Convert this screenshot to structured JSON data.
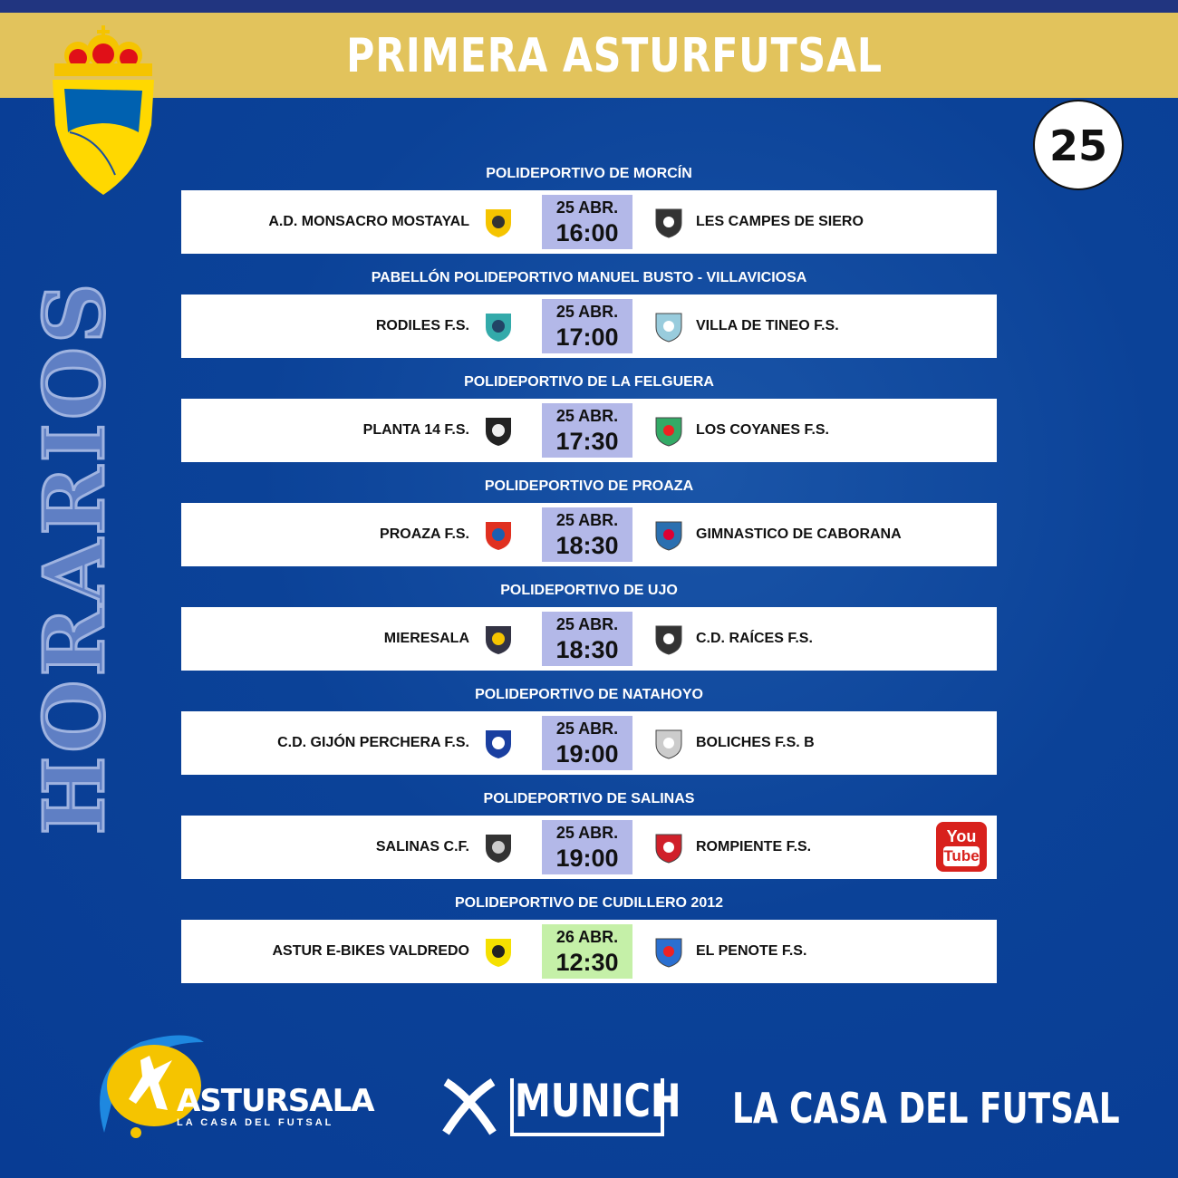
{
  "header": {
    "title": "PRIMERA ASTURFUTSAL",
    "round": "25",
    "side_label": "HORARIOS"
  },
  "colors": {
    "header_bg": "#e2c35c",
    "background": "#0b4298",
    "time_bg": "#b3b8e8",
    "time_bg_highlight": "#c5f0a8",
    "youtube": "#d8211c"
  },
  "matches": [
    {
      "venue": "POLIDEPORTIVO DE MORCÍN",
      "home": "A.D. MONSACRO MOSTAYAL",
      "away": "LES CAMPES DE SIERO",
      "date": "25 ABR.",
      "time": "16:00"
    },
    {
      "venue": "PABELLÓN POLIDEPORTIVO MANUEL BUSTO - VILLAVICIOSA",
      "home": "RODILES F.S.",
      "away": "VILLA DE TINEO F.S.",
      "date": "25 ABR.",
      "time": "17:00"
    },
    {
      "venue": "POLIDEPORTIVO DE LA FELGUERA",
      "home": "PLANTA 14 F.S.",
      "away": "LOS COYANES F.S.",
      "date": "25 ABR.",
      "time": "17:30"
    },
    {
      "venue": "POLIDEPORTIVO DE PROAZA",
      "home": "PROAZA F.S.",
      "away": "GIMNASTICO DE CABORANA",
      "date": "25 ABR.",
      "time": "18:30"
    },
    {
      "venue": "POLIDEPORTIVO DE UJO",
      "home": "MIERESALA",
      "away": "C.D. RAÍCES F.S.",
      "date": "25 ABR.",
      "time": "18:30"
    },
    {
      "venue": "POLIDEPORTIVO DE NATAHOYO",
      "home": "C.D. GIJÓN PERCHERA F.S.",
      "away": "BOLICHES F.S. B",
      "date": "25 ABR.",
      "time": "19:00"
    },
    {
      "venue": "POLIDEPORTIVO DE SALINAS",
      "home": "SALINAS C.F.",
      "away": "ROMPIENTE F.S.",
      "date": "25 ABR.",
      "time": "19:00",
      "youtube": {
        "line1": "You",
        "line2": "Tube"
      }
    },
    {
      "venue": "POLIDEPORTIVO DE CUDILLERO 2012",
      "home": "ASTUR E-BIKES VALDREDO",
      "away": "EL PENOTE F.S.",
      "date": "26 ABR.",
      "time": "12:30",
      "highlight": true
    }
  ],
  "footer": {
    "astursala_name": "ASTURSALA",
    "astursala_sub": "LA CASA DEL FUTSAL",
    "munich": "MUNICH",
    "slogan": "LA CASA DEL FUTSAL"
  }
}
